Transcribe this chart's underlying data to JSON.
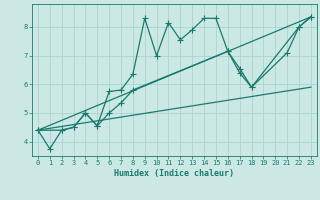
{
  "xlabel": "Humidex (Indice chaleur)",
  "bg_color": "#cce8e4",
  "grid_color": "#aad4ce",
  "line_color": "#1a7a6e",
  "xlim": [
    -0.5,
    23.5
  ],
  "ylim": [
    3.5,
    8.8
  ],
  "xticks": [
    0,
    1,
    2,
    3,
    4,
    5,
    6,
    7,
    8,
    9,
    10,
    11,
    12,
    13,
    14,
    15,
    16,
    17,
    18,
    19,
    20,
    21,
    22,
    23
  ],
  "yticks": [
    4,
    5,
    6,
    7,
    8
  ],
  "line1_x": [
    0,
    1,
    2,
    3,
    4,
    5,
    6,
    7,
    8,
    9,
    10,
    11,
    12,
    13,
    14,
    15,
    16,
    17,
    18,
    22,
    23
  ],
  "line1_y": [
    4.4,
    3.75,
    4.4,
    4.5,
    5.0,
    4.55,
    5.75,
    5.8,
    6.35,
    8.3,
    7.0,
    8.15,
    7.55,
    7.9,
    8.3,
    8.3,
    7.15,
    6.4,
    5.9,
    8.0,
    8.35
  ],
  "line2_x": [
    0,
    2,
    3,
    4,
    5,
    6,
    7,
    8,
    16,
    17,
    18,
    21,
    22,
    23
  ],
  "line2_y": [
    4.4,
    4.4,
    4.5,
    5.0,
    4.55,
    5.0,
    5.35,
    5.8,
    7.15,
    6.55,
    5.9,
    7.1,
    8.0,
    8.35
  ],
  "line3_x": [
    0,
    23
  ],
  "line3_y": [
    4.4,
    8.35
  ],
  "line4_x": [
    0,
    23
  ],
  "line4_y": [
    4.4,
    5.9
  ]
}
